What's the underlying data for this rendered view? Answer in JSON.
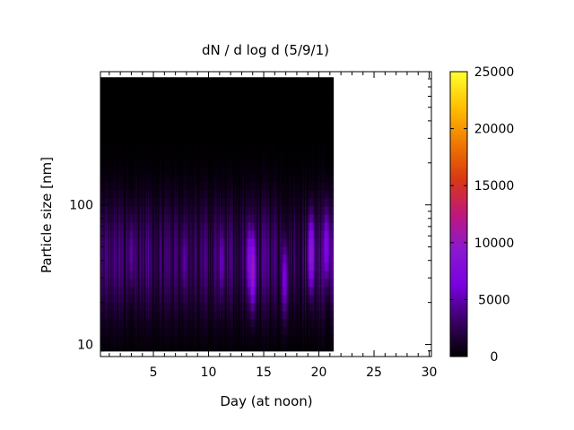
{
  "chart_data": {
    "type": "heatmap",
    "title": "dN / d log d (5/9/1)",
    "xlabel": "Day (at noon)",
    "ylabel": "Particle size [nm]",
    "x_range": [
      0.2,
      30.2
    ],
    "y_range": [
      8.2,
      900
    ],
    "y_scale": "log",
    "data_x_extent": [
      0.2,
      21.3
    ],
    "data_y_extent": [
      9.0,
      820
    ],
    "x_ticks": [
      5,
      10,
      15,
      20,
      25,
      30
    ],
    "x_tick_labels": [
      "5",
      "10",
      "15",
      "20",
      "25",
      "30"
    ],
    "y_ticks": [
      10,
      100
    ],
    "y_tick_labels": [
      "10",
      "100"
    ],
    "colorbar": {
      "range": [
        0,
        25000
      ],
      "ticks": [
        0,
        5000,
        10000,
        15000,
        20000,
        25000
      ],
      "tick_labels": [
        "0",
        "5000",
        "10000",
        "15000",
        "20000",
        "25000"
      ],
      "palette": [
        "#000000",
        "#3a0066",
        "#7a00e0",
        "#8a18d0",
        "#c0187a",
        "#d83a12",
        "#f07a00",
        "#ffc000",
        "#ffff30"
      ]
    },
    "grid": false,
    "hotspots": [
      {
        "day": 3.0,
        "size_nm": 45,
        "value": 5500
      },
      {
        "day": 7.8,
        "size_nm": 40,
        "value": 5000
      },
      {
        "day": 11.2,
        "size_nm": 40,
        "value": 6000
      },
      {
        "day": 13.7,
        "size_nm": 40,
        "value": 8500
      },
      {
        "day": 14.0,
        "size_nm": 35,
        "value": 10500
      },
      {
        "day": 16.9,
        "size_nm": 30,
        "value": 7500
      },
      {
        "day": 19.3,
        "size_nm": 45,
        "value": 10500
      },
      {
        "day": 20.7,
        "size_nm": 50,
        "value": 8500
      }
    ]
  }
}
